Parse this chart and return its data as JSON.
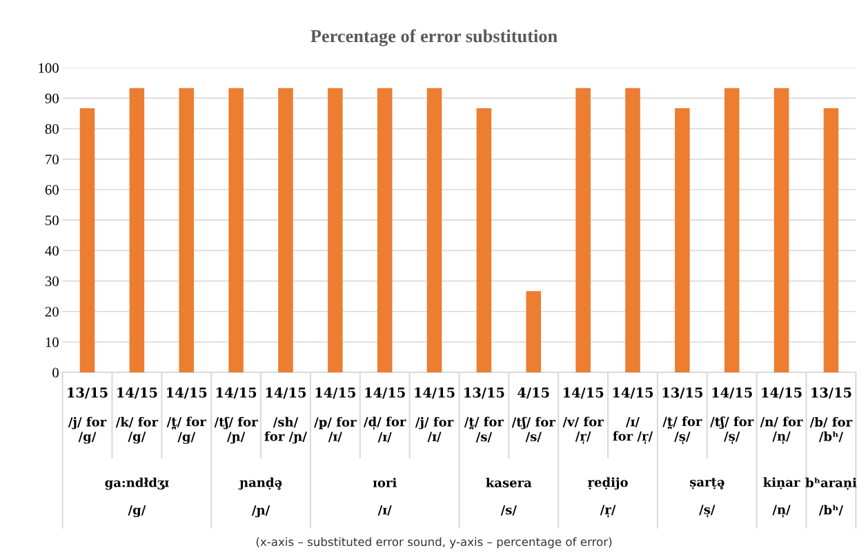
{
  "chart_data": {
    "type": "bar",
    "title": "Percentage of error substitution",
    "categories": [
      "13/15\n/j/ for\n/g/",
      "14/15\n/k/ for\n/g/",
      "14/15\n/t̪/ for\n/g/",
      "14/15\n/tʃ/ for\n/ɲ/",
      "14/15\n/sh/\nfor /ɲ/",
      "14/15\n/p/ for\n/ɪ/",
      "14/15\n/d̩/ for\n/ɪ/",
      "14/15\n/j/ for\n/ɪ/",
      "13/15\n/t̪/ for\n/s/",
      "4/15\n/tʃ/ for\n/s/",
      "14/15\n/v/ for\n/r̩/",
      "14/15\n/ɪ/\nfor /r̩/",
      "13/15\n/t̪/ for\n/s̩/",
      "14/15\n/tʃ/ for\n/s̩/",
      "14/15\n/n/ for\n/n̩/",
      "13/15\n/b/ for\n/bʰ/"
    ],
    "values": [
      86.7,
      93.3,
      93.3,
      93.3,
      93.3,
      93.3,
      93.3,
      93.3,
      86.7,
      26.7,
      93.3,
      93.3,
      86.7,
      93.3,
      93.3,
      86.7
    ],
    "color": "#ed7d31",
    "ylim": [
      0,
      100
    ],
    "yticks": [
      0,
      10,
      20,
      30,
      40,
      50,
      60,
      70,
      80,
      90,
      100
    ],
    "grid": "y",
    "legend": false,
    "annotations": [
      "ga:ndłdʒɪ\n/g/",
      "ɲanḍə̥\n/ɲ/",
      "ɪori\n/ɪ/",
      "kasera\n/s/",
      "ṛeḍijo\n/r̩/",
      "ṣarṭə̥\n/s̩/",
      "kiṇar\n/n̩/",
      "bʰaraṇi\n/bʰ/",
      "(x-axis – substituted error sound, y-axis – percentage of error)"
    ]
  }
}
